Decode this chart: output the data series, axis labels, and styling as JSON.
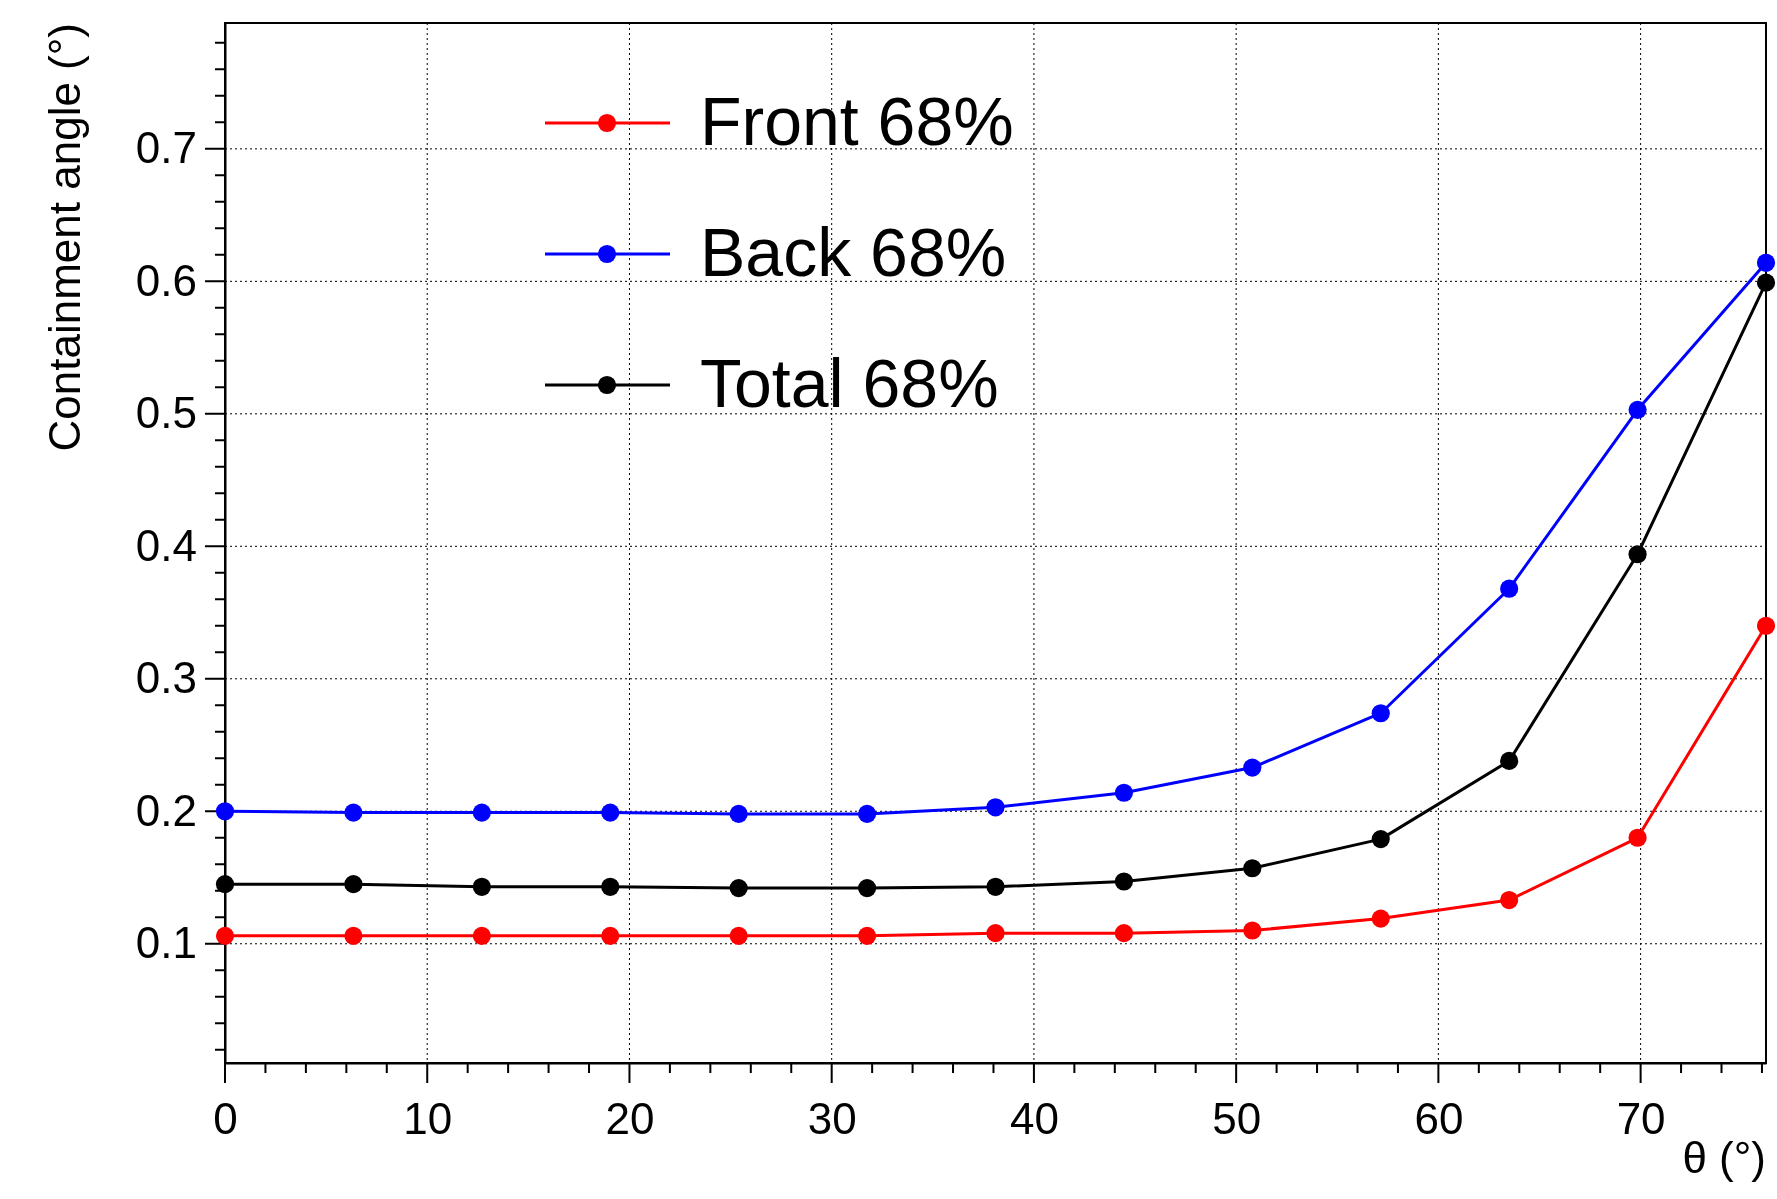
{
  "chart_data": {
    "type": "line",
    "xlabel": "θ (°)",
    "ylabel": "Containment angle (°)",
    "x": [
      0,
      6.35,
      12.7,
      19.05,
      25.4,
      31.75,
      38.1,
      44.45,
      50.8,
      57.15,
      63.5,
      69.85,
      76.2
    ],
    "series": [
      {
        "name": "Front 68%",
        "color": "#ff0000",
        "values": [
          0.106,
          0.106,
          0.106,
          0.106,
          0.106,
          0.106,
          0.108,
          0.108,
          0.11,
          0.119,
          0.133,
          0.18,
          0.34
        ]
      },
      {
        "name": "Back 68%",
        "color": "#0000ff",
        "values": [
          0.2,
          0.199,
          0.199,
          0.199,
          0.198,
          0.198,
          0.203,
          0.214,
          0.233,
          0.274,
          0.368,
          0.503,
          0.614
        ]
      },
      {
        "name": "Total 68%",
        "color": "#000000",
        "values": [
          0.145,
          0.145,
          0.143,
          0.143,
          0.142,
          0.142,
          0.143,
          0.147,
          0.157,
          0.179,
          0.238,
          0.394,
          0.599
        ]
      }
    ],
    "xlim": [
      0,
      76.2
    ],
    "ylim": [
      0.01,
      0.795
    ],
    "xticks": [
      0,
      10,
      20,
      30,
      40,
      50,
      60,
      70
    ],
    "yticks": [
      {
        "value": 0.1,
        "label": "0.1"
      },
      {
        "value": 0.2,
        "label": "0.2"
      },
      {
        "value": 0.3,
        "label": "0.3"
      },
      {
        "value": 0.4,
        "label": "0.4"
      },
      {
        "value": 0.5,
        "label": "0.5"
      },
      {
        "value": 0.6,
        "label": "0.6"
      },
      {
        "value": 0.7,
        "label": "0.7"
      }
    ],
    "grid": true,
    "legend": "top left",
    "marker": "circle",
    "line_style": "solid"
  }
}
